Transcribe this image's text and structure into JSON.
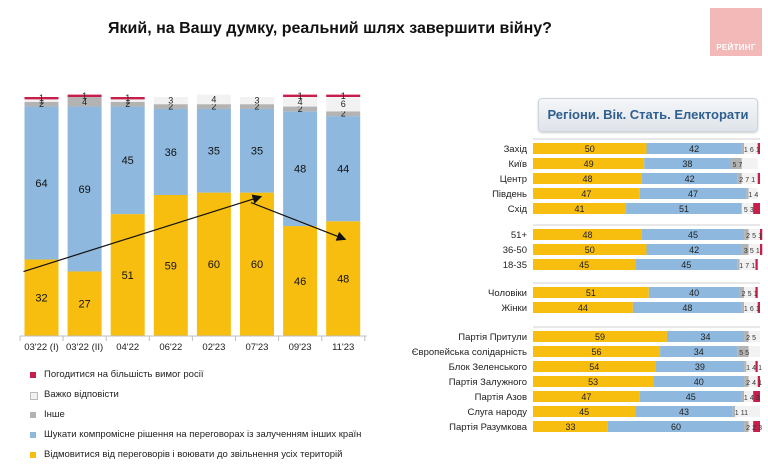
{
  "title": "Який, на Вашу думку, реальний шлях завершити війну?",
  "logo_text": "РЕЙТИНГ",
  "colors": {
    "yellow": "#F7BE10",
    "blue": "#8EB8DE",
    "gray": "#B3B3B3",
    "white": "#F2F2F2",
    "red": "#C81E4C"
  },
  "legend": [
    {
      "label": "Погодитися на більшість вимог росії",
      "color": "#C81E4C"
    },
    {
      "label": "Важко відповісти",
      "color": "#F2F2F2"
    },
    {
      "label": "Інше",
      "color": "#B3B3B3"
    },
    {
      "label": "Шукати компромісне рішення на переговорах із залученням інших країн",
      "color": "#8EB8DE"
    },
    {
      "label": "Відмовитися від переговорів і воювати до звільнення усіх територій",
      "color": "#F7BE10"
    }
  ],
  "segments_label": "Регіони. Вік. Стать. Електорати",
  "chart_data": [
    {
      "type": "bar",
      "stacked": true,
      "categories": [
        "03'22 (I)",
        "03'22 (II)",
        "04'22",
        "06'22",
        "02'23",
        "07'23",
        "09'23",
        "11'23"
      ],
      "series": [
        {
          "name": "Відмовитися від переговорів і воювати до звільнення усіх територій",
          "values": [
            32,
            27,
            51,
            59,
            60,
            60,
            46,
            48
          ]
        },
        {
          "name": "Шукати компромісне рішення на переговорах із залученням інших країн",
          "values": [
            64,
            69,
            45,
            36,
            35,
            35,
            48,
            44
          ]
        },
        {
          "name": "Інше",
          "values": [
            2,
            4,
            2,
            2,
            2,
            2,
            2,
            2
          ]
        },
        {
          "name": "Важко відповісти",
          "values": [
            1,
            null,
            1,
            3,
            4,
            3,
            4,
            6
          ]
        },
        {
          "name": "Погодитися на більшість вимог росії",
          "values": [
            1,
            1,
            1,
            0,
            0,
            0,
            1,
            1
          ]
        }
      ],
      "ylim": [
        0,
        100
      ]
    },
    {
      "type": "bar",
      "stacked": true,
      "orientation": "horizontal",
      "groups": [
        {
          "rows": [
            {
              "label": "Захід",
              "values": [
                50,
                42,
                1,
                6,
                1
              ]
            },
            {
              "label": "Київ",
              "values": [
                49,
                38,
                5,
                7,
                0
              ]
            },
            {
              "label": "Центр",
              "values": [
                48,
                42,
                2,
                7,
                1
              ]
            },
            {
              "label": "Південь",
              "values": [
                47,
                47,
                1,
                4,
                0
              ]
            },
            {
              "label": "Схід",
              "values": [
                41,
                51,
                0,
                5,
                3
              ]
            }
          ]
        },
        {
          "rows": [
            {
              "label": "51+",
              "values": [
                48,
                45,
                2,
                5,
                1
              ]
            },
            {
              "label": "36-50",
              "values": [
                50,
                42,
                3,
                5,
                1
              ]
            },
            {
              "label": "18-35",
              "values": [
                45,
                45,
                1,
                7,
                1
              ]
            }
          ]
        },
        {
          "rows": [
            {
              "label": "Чоловіки",
              "values": [
                51,
                40,
                2,
                5,
                1
              ]
            },
            {
              "label": "Жінки",
              "values": [
                44,
                48,
                1,
                6,
                1
              ]
            }
          ]
        },
        {
          "rows": [
            {
              "label": "Партія Притули",
              "values": [
                59,
                34,
                2,
                5,
                0
              ]
            },
            {
              "label": "Європейська солідарність",
              "values": [
                56,
                34,
                5,
                5,
                0
              ]
            },
            {
              "label": "Блок Зеленського",
              "values": [
                54,
                39,
                1,
                4,
                1
              ]
            },
            {
              "label": "Партія Залужного",
              "values": [
                53,
                40,
                2,
                4,
                1
              ]
            },
            {
              "label": "Партія Азов",
              "values": [
                47,
                45,
                1,
                4,
                3
              ]
            },
            {
              "label": "Слуга народу",
              "values": [
                45,
                43,
                1,
                11,
                0
              ]
            },
            {
              "label": "Партія Разумкова",
              "values": [
                33,
                60,
                2,
                2,
                3
              ]
            }
          ]
        }
      ],
      "series_order": [
        "Відмовитися від переговорів і воювати до звільнення усіх територій",
        "Шукати компромісне рішення на переговорах із залученням інших країн",
        "Інше",
        "Важко відповісти",
        "Погодитися на більшість вимог росії"
      ],
      "xlim": [
        0,
        100
      ]
    }
  ]
}
